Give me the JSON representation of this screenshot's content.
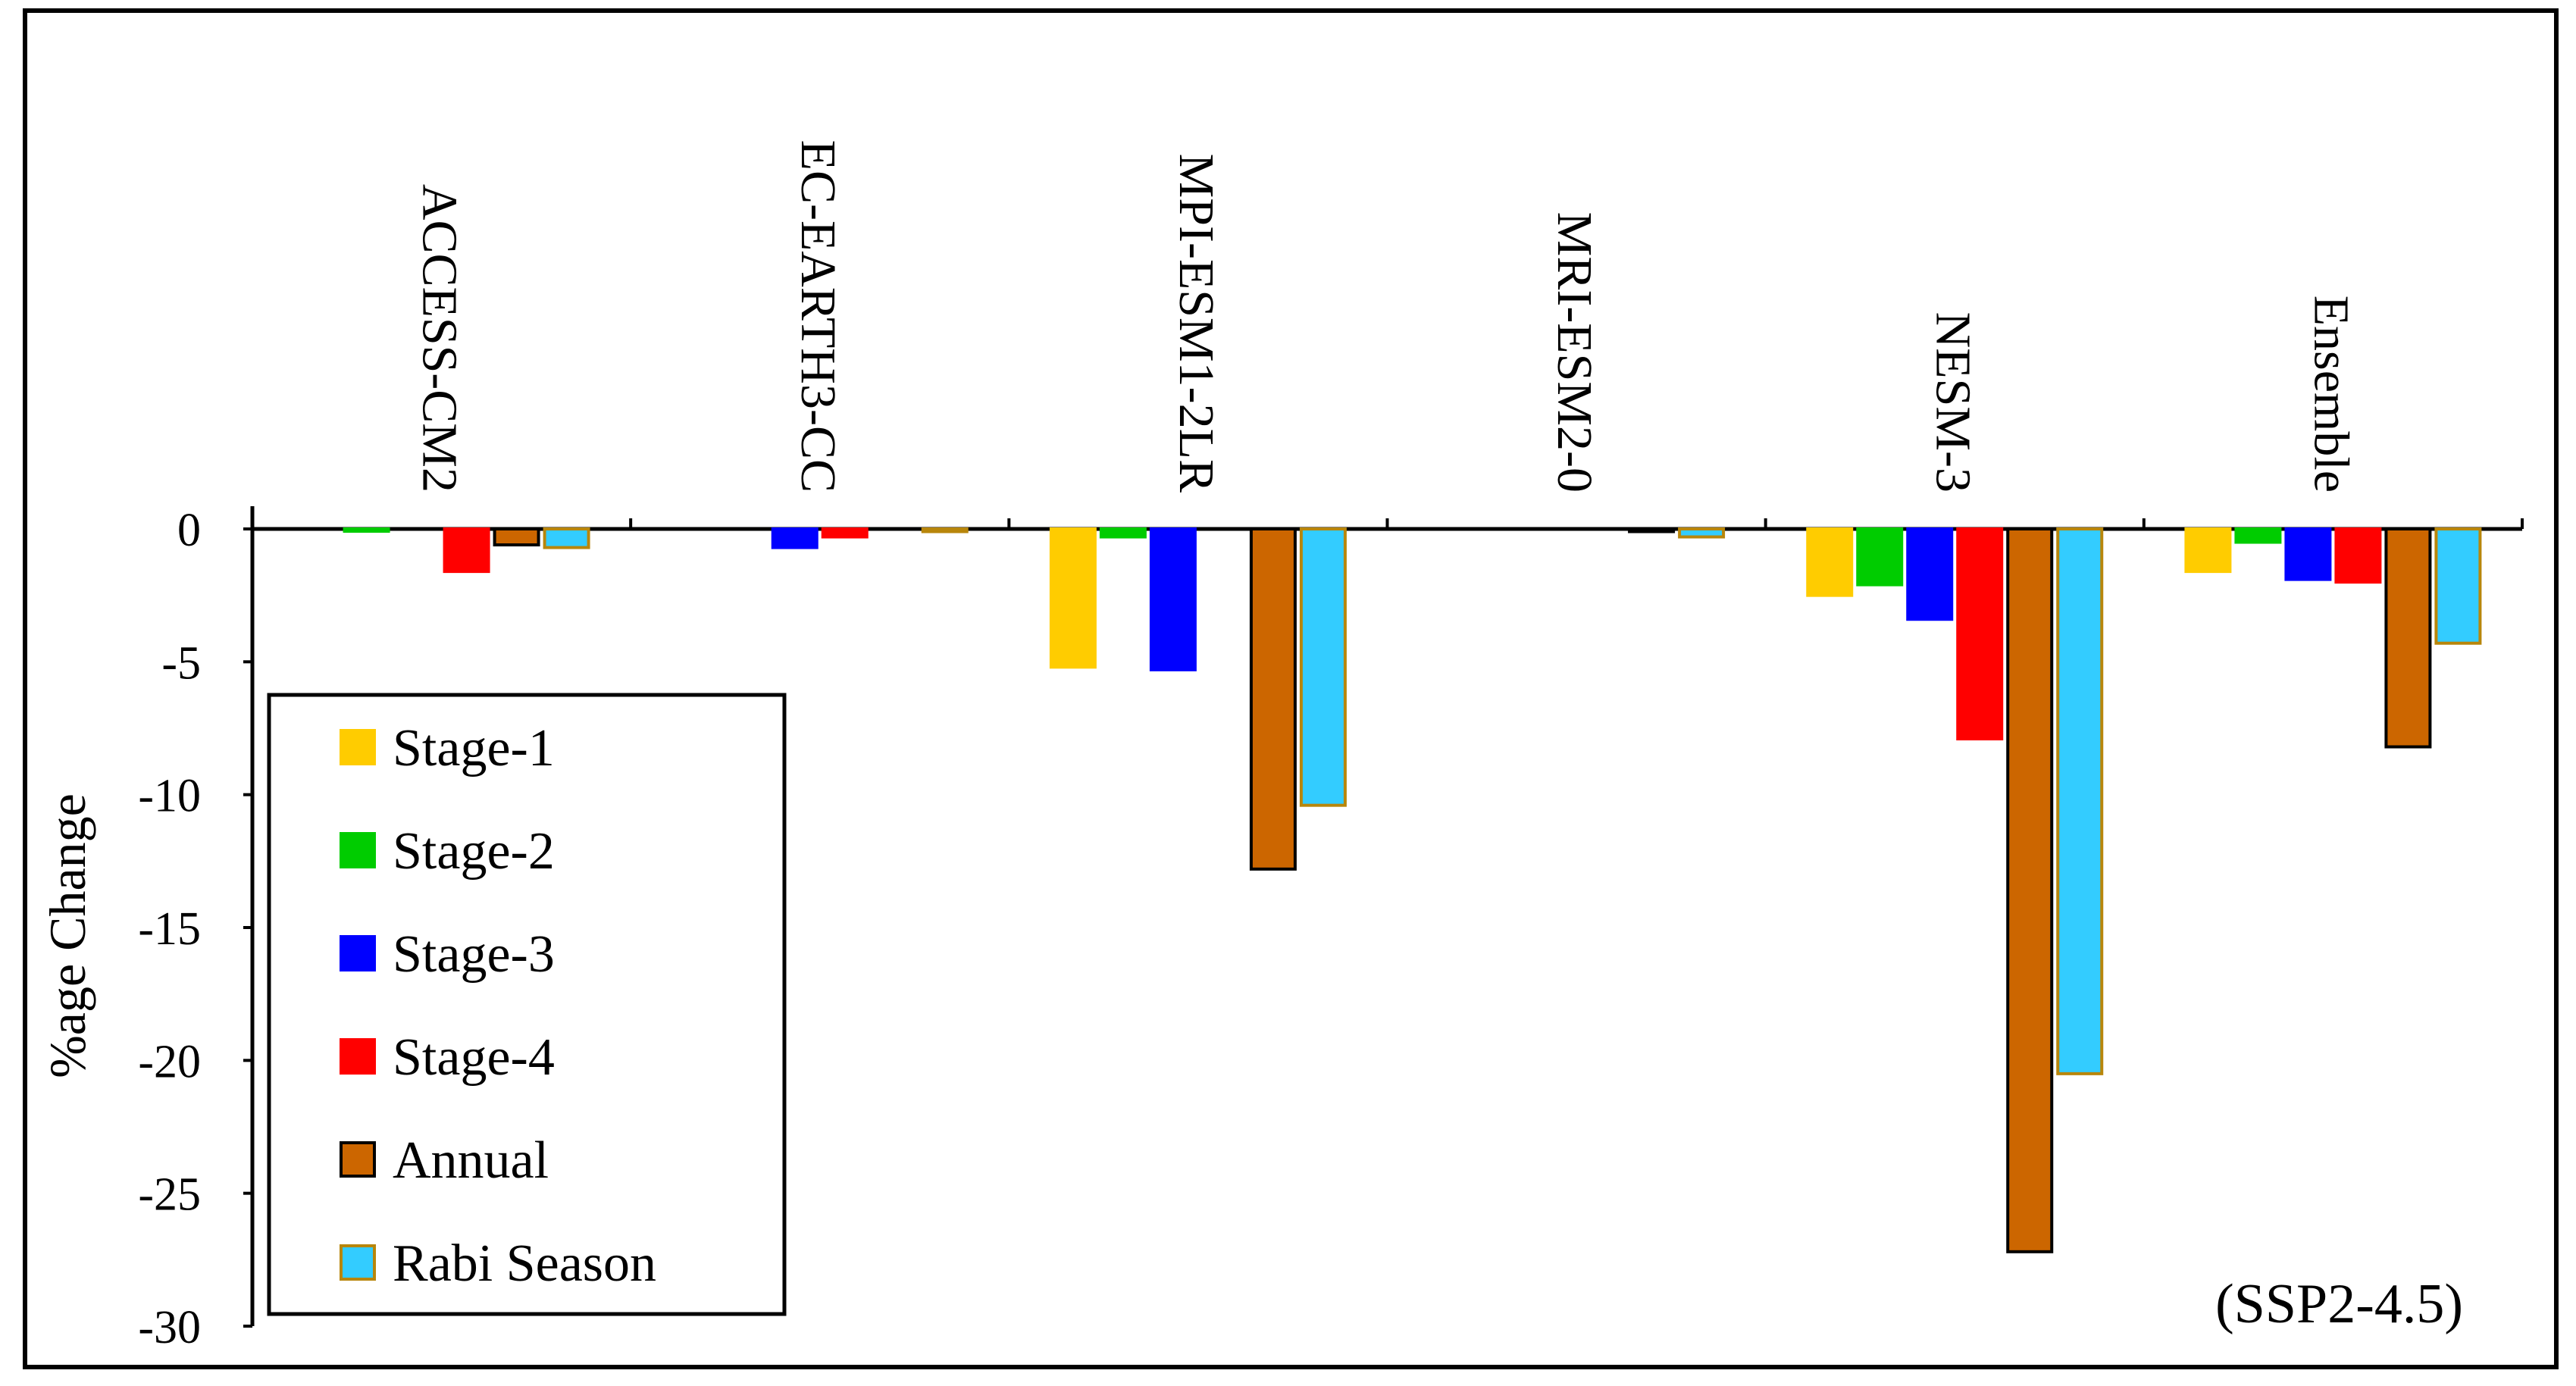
{
  "chart_data": {
    "type": "bar",
    "title": "",
    "annotation": "(SSP2-4.5)",
    "xlabel": "",
    "ylabel": "%age Change",
    "ylim": [
      -30,
      0
    ],
    "yticks": [
      0,
      -5,
      -10,
      -15,
      -20,
      -25,
      -30
    ],
    "categories": [
      "ACCESS-CM2",
      "EC-EARTH3-CC",
      "MPI-ESM1-2LR",
      "MRI-ESM2-0",
      "NESM-3",
      "Ensemble"
    ],
    "legend_position": "bottom-left",
    "series": [
      {
        "name": "Stage-1",
        "color": "#FFCC00",
        "outline": "#FFCC00",
        "values": [
          0,
          0,
          -5.2,
          0,
          -2.5,
          -1.6
        ]
      },
      {
        "name": "Stage-2",
        "color": "#00CC00",
        "outline": "#00CC00",
        "values": [
          -0.05,
          0,
          -0.3,
          0,
          -2.1,
          -0.5
        ]
      },
      {
        "name": "Stage-3",
        "color": "#0000FF",
        "outline": "#0000FF",
        "values": [
          0,
          -0.7,
          -5.3,
          0,
          -3.4,
          -1.9
        ]
      },
      {
        "name": "Stage-4",
        "color": "#FF0000",
        "outline": "#FF0000",
        "values": [
          -1.6,
          -0.3,
          0,
          0,
          -7.9,
          -2.0
        ]
      },
      {
        "name": "Annual",
        "color": "#CC6600",
        "outline": "#000000",
        "values": [
          -0.6,
          0,
          -12.8,
          -0.1,
          -27.2,
          -8.2
        ]
      },
      {
        "name": "Rabi Season",
        "color": "#33CCFF",
        "outline": "#B8860B",
        "values": [
          -0.7,
          -0.1,
          -10.4,
          -0.3,
          -20.5,
          -4.3
        ]
      }
    ]
  }
}
